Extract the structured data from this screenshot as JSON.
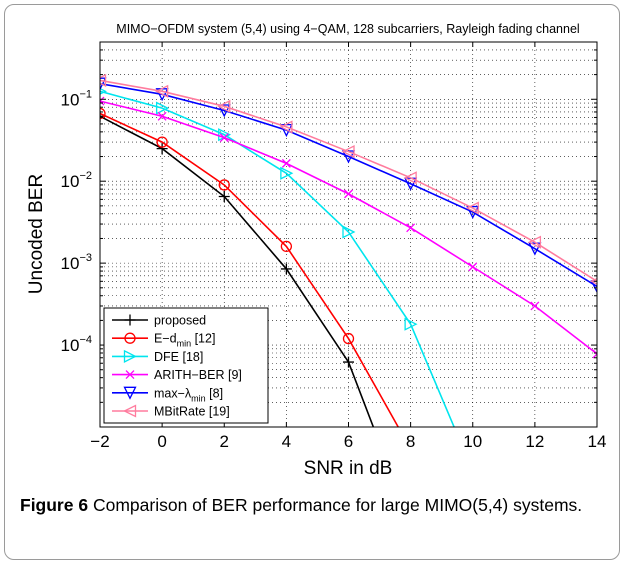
{
  "caption": {
    "label": "Figure 6",
    "text": "Comparison of BER performance for large MIMO(5,4) systems."
  },
  "chart_data": {
    "type": "line",
    "title": "MIMO−OFDM system (5,4) using 4−QAM, 128 subcarriers, Rayleigh fading channel",
    "xlabel": "SNR in dB",
    "ylabel": "Uncoded BER",
    "xlim": [
      -2,
      14
    ],
    "ylim": [
      1e-05,
      0.5
    ],
    "yscale": "log",
    "grid": true,
    "legend_position": "bottom-left",
    "x_ticks": [
      "−2",
      "0",
      "2",
      "4",
      "6",
      "8",
      "10",
      "12",
      "14"
    ],
    "y_ticks": [
      {
        "base": "10",
        "exp": "−1",
        "value": 0.1
      },
      {
        "base": "10",
        "exp": "−2",
        "value": 0.01
      },
      {
        "base": "10",
        "exp": "−3",
        "value": 0.001
      },
      {
        "base": "10",
        "exp": "−4",
        "value": 0.0001
      }
    ],
    "series": [
      {
        "name": "proposed",
        "color": "#000000",
        "marker": "plus",
        "x": [
          -2,
          0,
          2,
          4,
          6,
          6.8
        ],
        "y": [
          0.062,
          0.025,
          0.0065,
          0.00085,
          6.2e-05,
          1e-05
        ]
      },
      {
        "name": "E−d_min [12]",
        "legend_main": "E−d",
        "legend_sub": "min",
        "legend_rest": " [12]",
        "color": "#ff0000",
        "marker": "circle",
        "x": [
          -2,
          0,
          2,
          4,
          6,
          7.6
        ],
        "y": [
          0.067,
          0.03,
          0.009,
          0.0016,
          0.00012,
          1e-05
        ]
      },
      {
        "name": "DFE [18]",
        "color": "#00e5ee",
        "marker": "triangle-right",
        "x": [
          -2,
          0,
          2,
          4,
          6,
          8,
          9.4
        ],
        "y": [
          0.125,
          0.078,
          0.037,
          0.0125,
          0.0024,
          0.00018,
          1e-05
        ]
      },
      {
        "name": "ARITH−BER [9]",
        "color": "#ff00ff",
        "marker": "x",
        "x": [
          -2,
          0,
          2,
          4,
          6,
          8,
          10,
          12,
          14
        ],
        "y": [
          0.095,
          0.062,
          0.034,
          0.0165,
          0.007,
          0.0027,
          0.0009,
          0.0003,
          7.8e-05
        ]
      },
      {
        "name": "max−λ_min [8]",
        "legend_main": "max−λ",
        "legend_sub": "min",
        "legend_rest": " [8]",
        "color": "#0000ff",
        "marker": "triangle-down",
        "x": [
          -2,
          0,
          2,
          4,
          6,
          8,
          10,
          12,
          14
        ],
        "y": [
          0.155,
          0.115,
          0.073,
          0.042,
          0.02,
          0.0093,
          0.0042,
          0.0015,
          0.00052
        ]
      },
      {
        "name": "MBitRate [19]",
        "color": "#ff7c9e",
        "marker": "triangle-left",
        "x": [
          -2,
          0,
          2,
          4,
          6,
          8,
          10,
          12,
          14
        ],
        "y": [
          0.17,
          0.125,
          0.082,
          0.046,
          0.023,
          0.011,
          0.0047,
          0.0018,
          0.0006
        ]
      }
    ]
  }
}
